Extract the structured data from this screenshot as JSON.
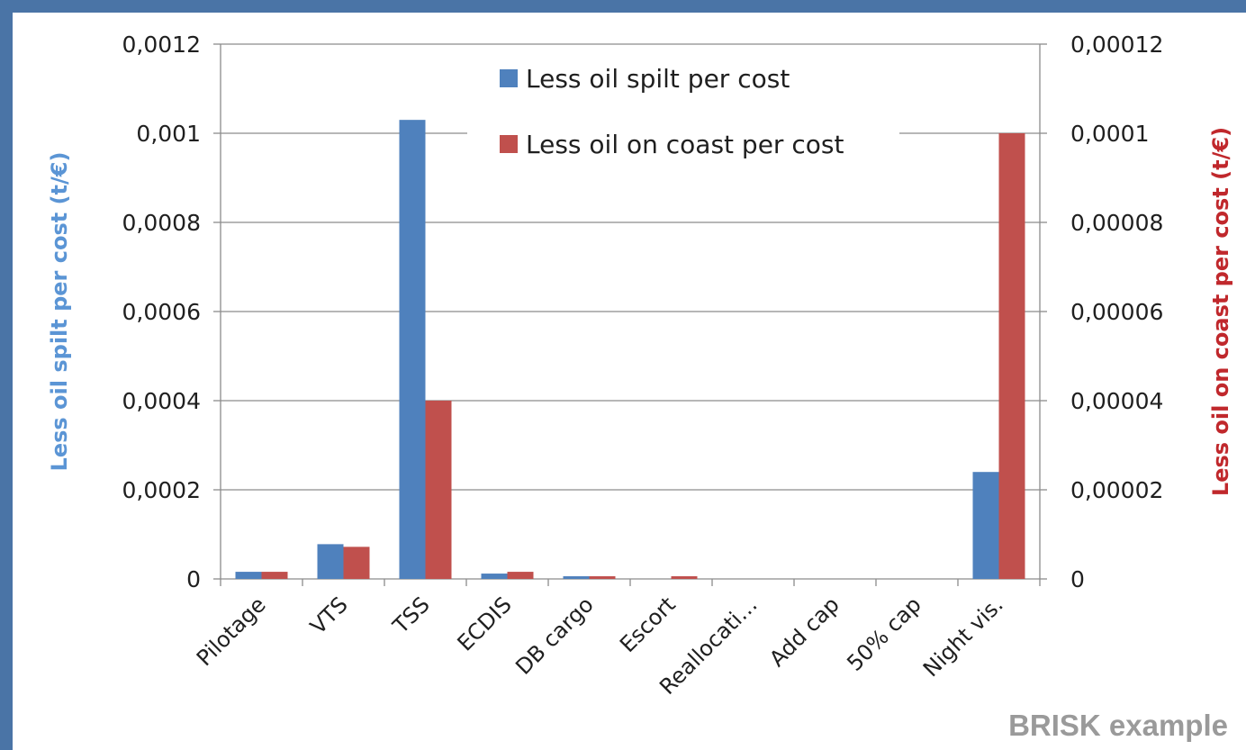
{
  "chart_data": {
    "type": "bar",
    "categories": [
      "Pilotage",
      "VTS",
      "TSS",
      "ECDIS",
      "DB cargo",
      "Escort",
      "Reallocati…",
      "Add cap",
      "50% cap",
      "Night vis."
    ],
    "series": [
      {
        "name": "Less oil spilt per cost",
        "axis": "left",
        "color": "#4f81bd",
        "values": [
          1.6e-05,
          7.8e-05,
          0.00103,
          1.2e-05,
          6e-06,
          0.0,
          0.0,
          0.0,
          0.0,
          0.00024
        ]
      },
      {
        "name": "Less oil on coast per cost",
        "axis": "right",
        "color": "#c0504d",
        "values": [
          1.6e-06,
          7.2e-06,
          4e-05,
          1.6e-06,
          6e-07,
          6e-07,
          0.0,
          0.0,
          0.0,
          0.0001
        ]
      }
    ],
    "y_left": {
      "label": "Less oil spilt per cost (t/€)",
      "label_color": "#5b95d5",
      "range": [
        0,
        0.0012
      ],
      "ticks": [
        "0",
        "0,0002",
        "0,0004",
        "0,0006",
        "0,0008",
        "0,001",
        "0,0012"
      ]
    },
    "y_right": {
      "label": "Less oil on coast per cost (t/€)",
      "label_color": "#c0282c",
      "range": [
        0,
        0.00012
      ],
      "ticks": [
        "0",
        "0,00002",
        "0,00004",
        "0,00006",
        "0,00008",
        "0,0001",
        "0,00012"
      ]
    },
    "grid": true,
    "legend_position": "top-center"
  },
  "watermark": "BRISK example",
  "colors": {
    "frame": "#4a74a6",
    "background": "#ffffff"
  }
}
